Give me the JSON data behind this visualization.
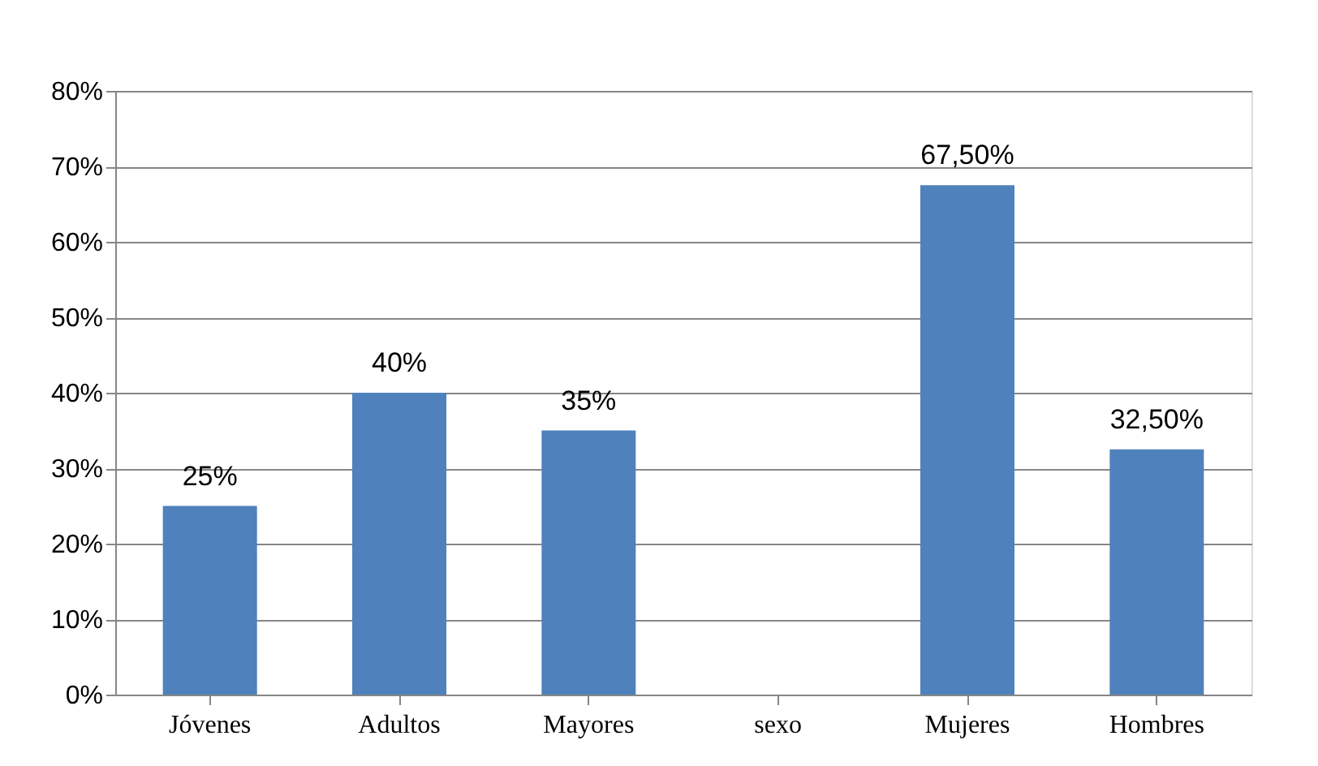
{
  "chart_data": {
    "type": "bar",
    "categories": [
      "Jóvenes",
      "Adultos",
      "Mayores",
      "sexo",
      "Mujeres",
      "Hombres"
    ],
    "values": [
      25,
      40,
      35,
      null,
      67.5,
      32.5
    ],
    "value_labels": [
      "25%",
      "40%",
      "35%",
      null,
      "67,50%",
      "32,50%"
    ],
    "color": "#4f81bd",
    "ylim": [
      0,
      80
    ],
    "yticks": [
      {
        "value": 0,
        "label": "0%"
      },
      {
        "value": 10,
        "label": "10%"
      },
      {
        "value": 20,
        "label": "20%"
      },
      {
        "value": 30,
        "label": "30%"
      },
      {
        "value": 40,
        "label": "40%"
      },
      {
        "value": 50,
        "label": "50%"
      },
      {
        "value": 60,
        "label": "60%"
      },
      {
        "value": 70,
        "label": "70%"
      },
      {
        "value": 80,
        "label": "80%"
      }
    ],
    "grid": "y"
  }
}
